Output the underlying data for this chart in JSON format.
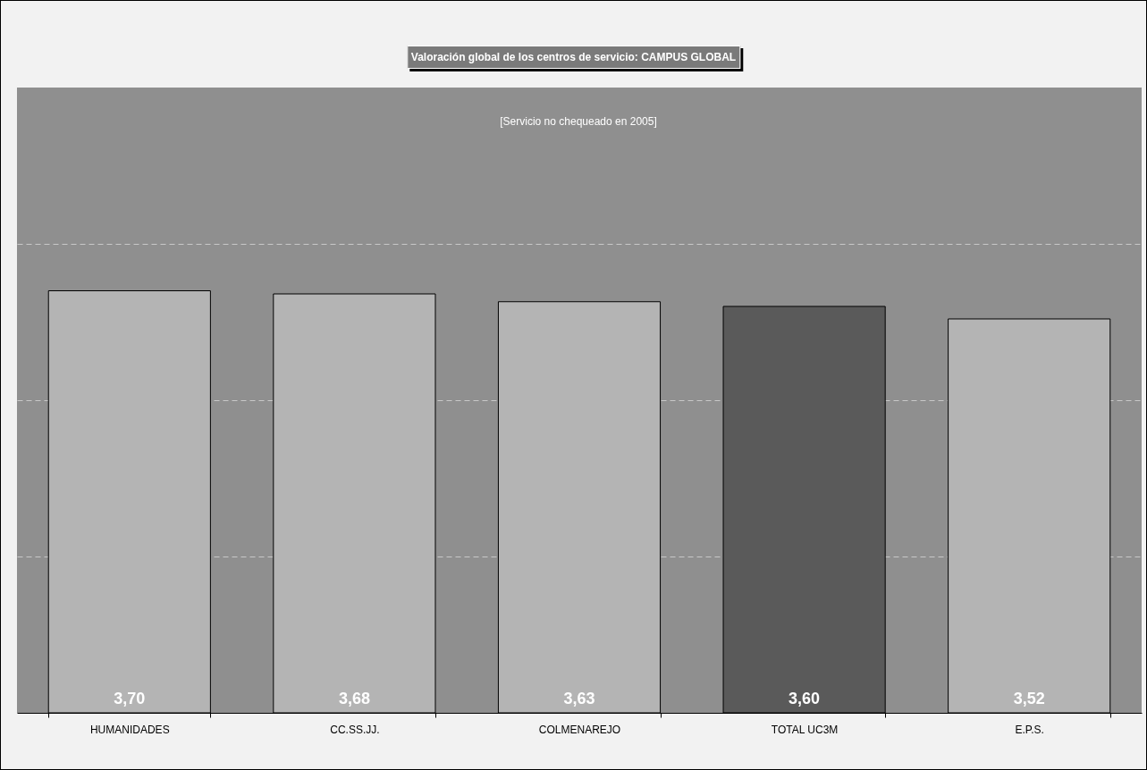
{
  "chart_data": {
    "type": "bar",
    "title": "Valoración global de los centros de servicio: CAMPUS GLOBAL",
    "annotations": [
      "[Servicio no chequeado en 2005]"
    ],
    "categories": [
      "HUMANIDADES",
      "CC.SS.JJ.",
      "COLMENAREJO",
      "TOTAL UC3M",
      "E.P.S."
    ],
    "values": [
      3.7,
      3.68,
      3.63,
      3.6,
      3.52
    ],
    "value_labels": [
      "3,70",
      "3,68",
      "3,63",
      "3,60",
      "3,52"
    ],
    "colors": [
      "#b4b4b4",
      "#b4b4b4",
      "#b4b4b4",
      "#5a5a5a",
      "#b4b4b4"
    ],
    "ylim": [
      1,
      5
    ],
    "yticks": [
      {
        "value": 2,
        "label": null
      },
      {
        "value": 3,
        "label": null
      },
      {
        "value": 4,
        "label": null
      }
    ],
    "grid": "y",
    "tick_labels": "x"
  }
}
